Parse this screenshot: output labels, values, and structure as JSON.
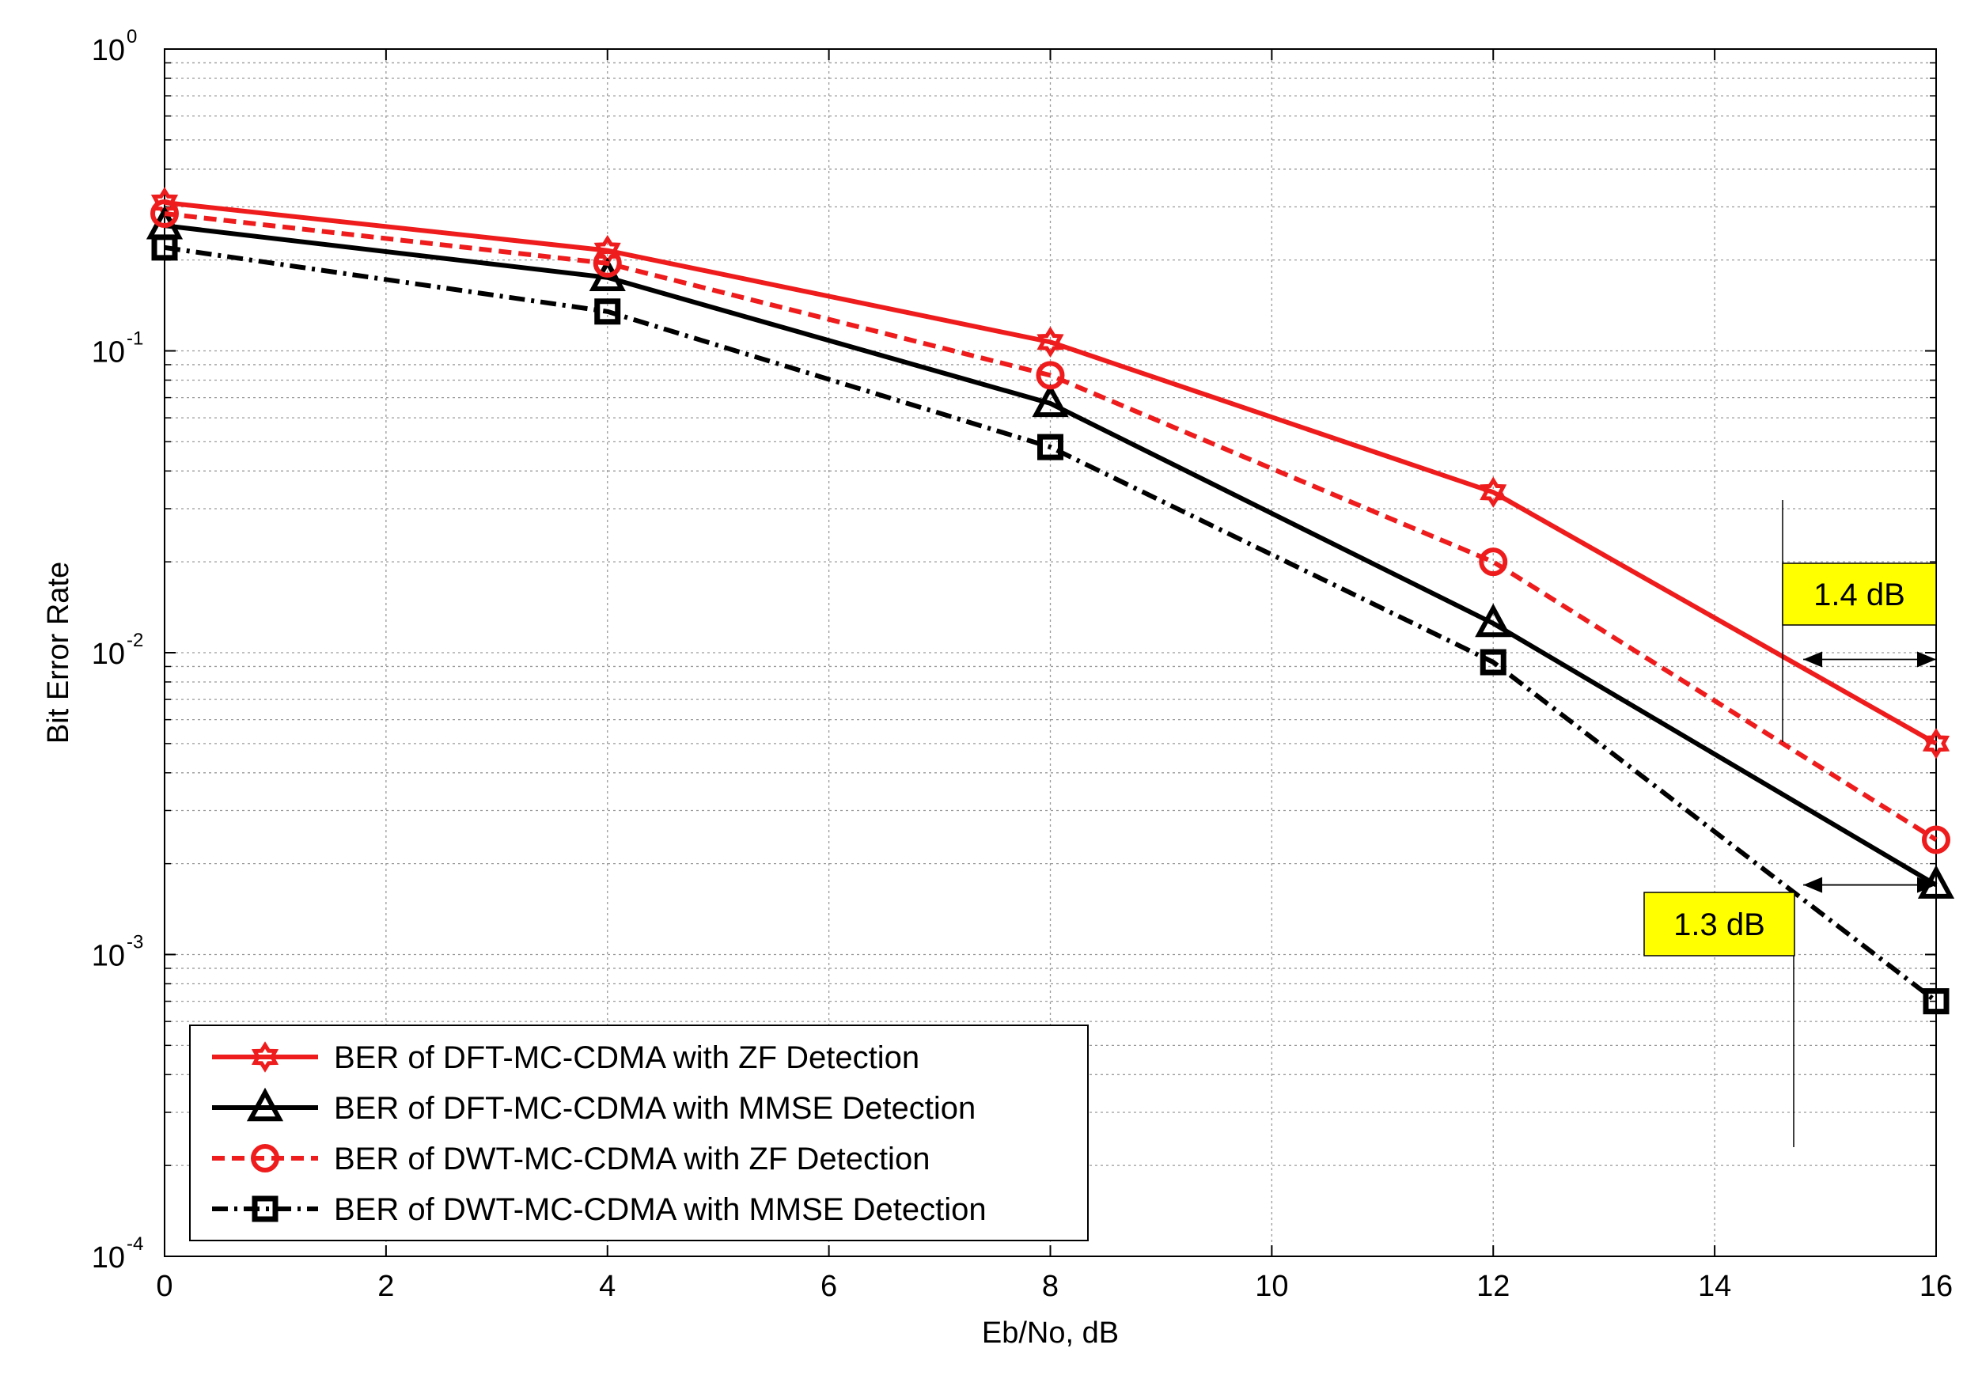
{
  "chart_data": {
    "type": "line",
    "title": "",
    "xlabel": "Eb/No, dB",
    "ylabel": "Bit Error Rate",
    "xlim": [
      0,
      16
    ],
    "ylim": [
      0.0001,
      1
    ],
    "yscale": "log",
    "grid": true,
    "x_ticks": [
      0,
      2,
      4,
      6,
      8,
      10,
      12,
      14,
      16
    ],
    "y_ticks": [
      {
        "base": "10",
        "exp": "0",
        "value": 1
      },
      {
        "base": "10",
        "exp": "-1",
        "value": 0.1
      },
      {
        "base": "10",
        "exp": "-2",
        "value": 0.01
      },
      {
        "base": "10",
        "exp": "-3",
        "value": 0.001
      },
      {
        "base": "10",
        "exp": "-4",
        "value": 0.0001
      }
    ],
    "legend_position": "bottom-left",
    "series": [
      {
        "name": "BER of DFT-MC-CDMA with ZF Detection",
        "color": "#ee1c1c",
        "dash": "solid",
        "marker": "hexagram",
        "x": [
          0,
          4,
          8,
          12,
          16
        ],
        "values": [
          0.31,
          0.215,
          0.107,
          0.034,
          0.005
        ]
      },
      {
        "name": "BER of DFT-MC-CDMA with MMSE Detection",
        "color": "#000000",
        "dash": "solid",
        "marker": "triangle",
        "x": [
          0,
          4,
          8,
          12,
          16
        ],
        "values": [
          0.26,
          0.175,
          0.067,
          0.0125,
          0.0017
        ]
      },
      {
        "name": "BER of DWT-MC-CDMA with ZF Detection",
        "color": "#ee1c1c",
        "dash": "dashed",
        "marker": "circle",
        "x": [
          0,
          4,
          8,
          12,
          16
        ],
        "values": [
          0.285,
          0.195,
          0.083,
          0.02,
          0.0024
        ]
      },
      {
        "name": "BER of DWT-MC-CDMA with MMSE Detection",
        "color": "#000000",
        "dash": "dashdot",
        "marker": "square",
        "x": [
          0,
          4,
          8,
          12,
          16
        ],
        "values": [
          0.22,
          0.135,
          0.048,
          0.0093,
          0.0007
        ]
      }
    ],
    "annotations": [
      {
        "text": "1.4 dB",
        "x_from": 14.8,
        "x_to": 16,
        "y": 0.0095,
        "box_color": "#ffff00"
      },
      {
        "text": "1.3 dB",
        "x_from": 14.8,
        "x_to": 16,
        "y": 0.0017,
        "box_color": "#ffff00"
      }
    ]
  }
}
